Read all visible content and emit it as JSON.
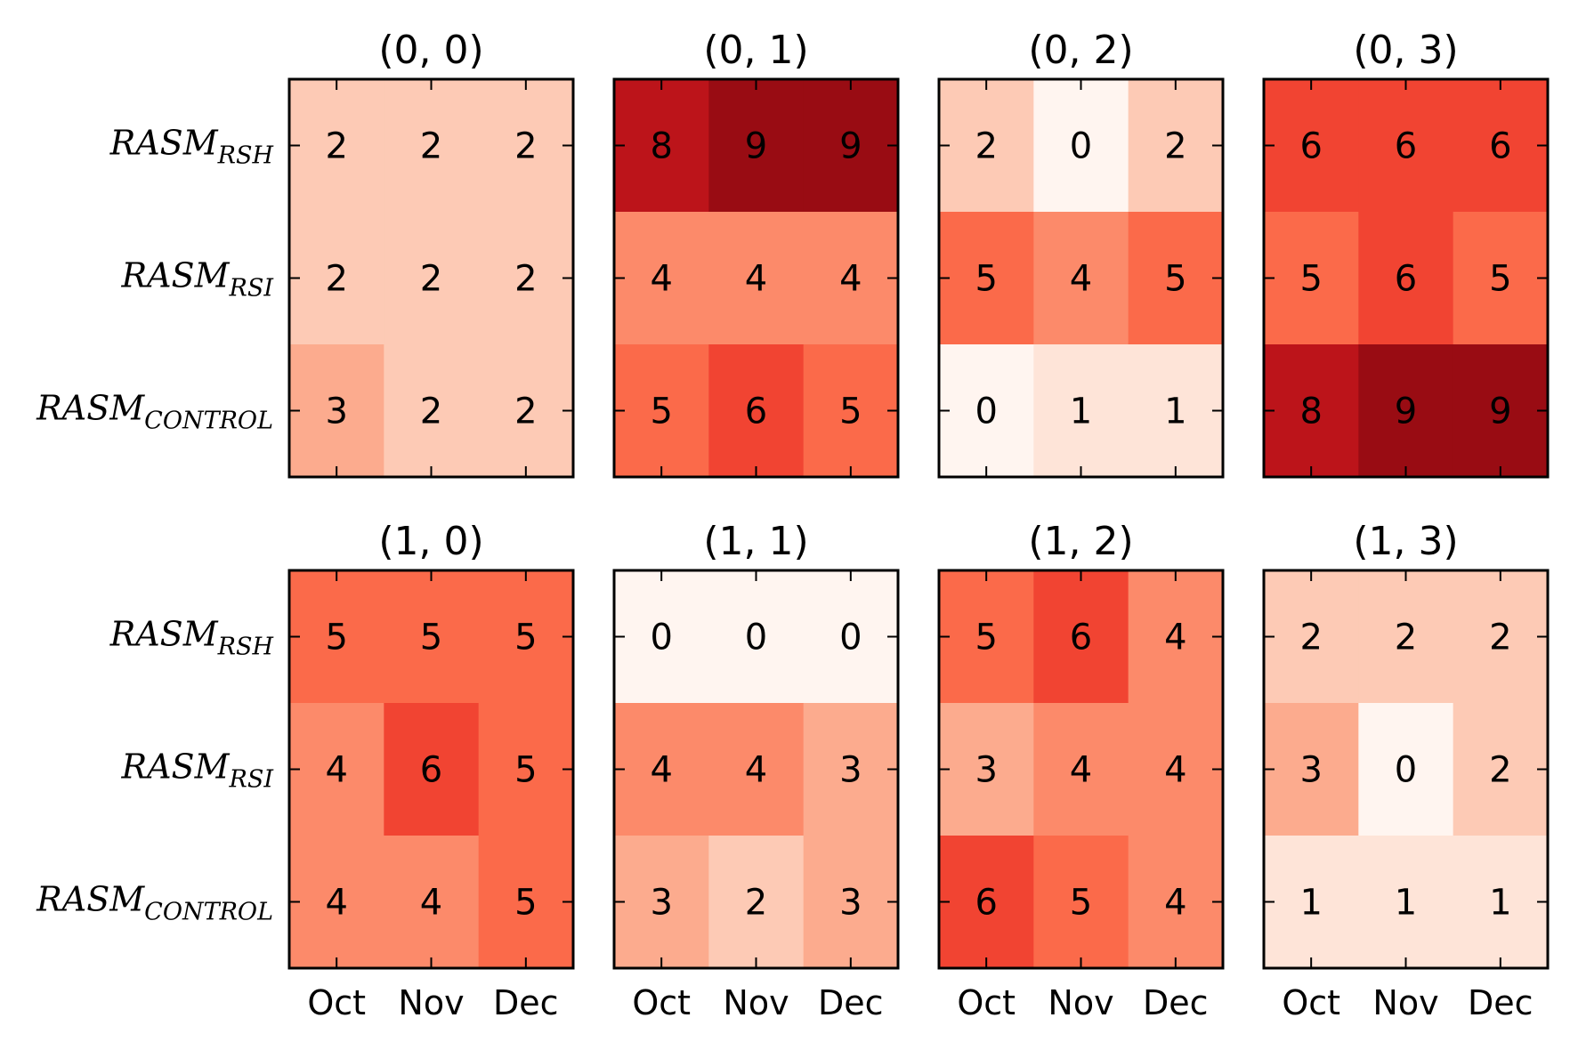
{
  "chart_data": {
    "type": "heatmap",
    "colormap": "Reds",
    "colors": {
      "low": "#fff5f0",
      "high": "#e32f27",
      "text": "#000000",
      "frame": "#000000"
    },
    "row_labels": [
      {
        "base": "RASM",
        "sub": "RSH"
      },
      {
        "base": "RASM",
        "sub": "RSI"
      },
      {
        "base": "RASM",
        "sub": "CONTROL"
      }
    ],
    "col_labels": [
      "Oct",
      "Nov",
      "Dec"
    ],
    "value_range": [
      0,
      10
    ],
    "panels": [
      {
        "title": "(0, 0)",
        "values": [
          [
            2,
            2,
            2
          ],
          [
            2,
            2,
            2
          ],
          [
            3,
            2,
            2
          ]
        ]
      },
      {
        "title": "(0, 1)",
        "values": [
          [
            8,
            9,
            9
          ],
          [
            4,
            4,
            4
          ],
          [
            5,
            6,
            5
          ]
        ]
      },
      {
        "title": "(0, 2)",
        "values": [
          [
            2,
            0,
            2
          ],
          [
            5,
            4,
            5
          ],
          [
            0,
            1,
            1
          ]
        ]
      },
      {
        "title": "(0, 3)",
        "values": [
          [
            6,
            6,
            6
          ],
          [
            5,
            6,
            5
          ],
          [
            8,
            9,
            9
          ]
        ]
      },
      {
        "title": "(1, 0)",
        "values": [
          [
            5,
            5,
            5
          ],
          [
            4,
            6,
            5
          ],
          [
            4,
            4,
            5
          ]
        ]
      },
      {
        "title": "(1, 1)",
        "values": [
          [
            0,
            0,
            0
          ],
          [
            4,
            4,
            3
          ],
          [
            3,
            2,
            3
          ]
        ]
      },
      {
        "title": "(1, 2)",
        "values": [
          [
            5,
            6,
            4
          ],
          [
            3,
            4,
            4
          ],
          [
            6,
            5,
            4
          ]
        ]
      },
      {
        "title": "(1, 3)",
        "values": [
          [
            2,
            2,
            2
          ],
          [
            3,
            0,
            2
          ],
          [
            1,
            1,
            1
          ]
        ]
      }
    ]
  }
}
